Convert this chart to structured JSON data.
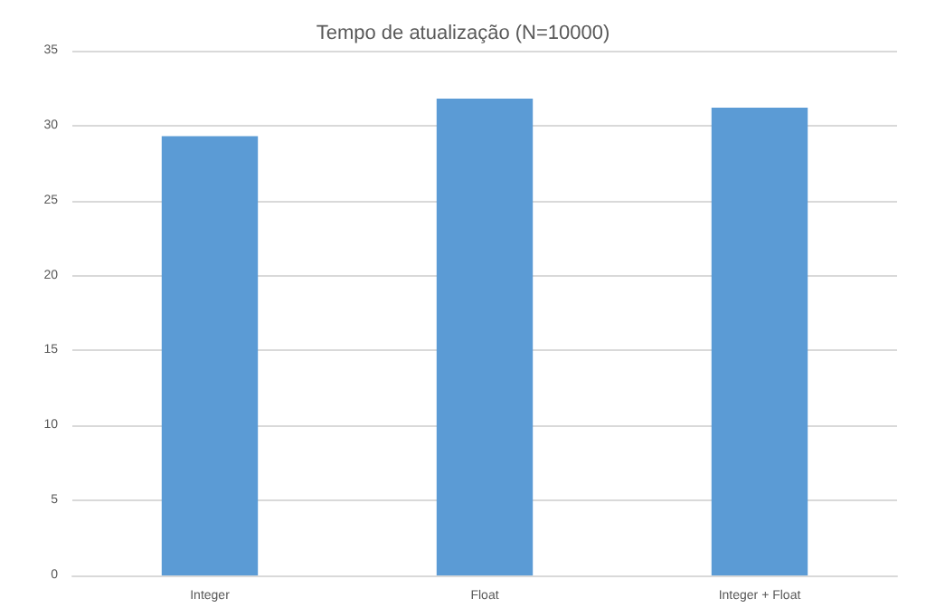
{
  "chart_data": {
    "type": "bar",
    "title": "Tempo de atualização (N=10000)",
    "categories": [
      "Integer",
      "Float",
      "Integer + Float"
    ],
    "values": [
      29.3,
      31.8,
      31.2
    ],
    "color": "#5b9bd5",
    "ylim": [
      0,
      35
    ],
    "yticks": [
      0,
      5,
      10,
      15,
      20,
      25,
      30,
      35
    ],
    "grid": true
  }
}
